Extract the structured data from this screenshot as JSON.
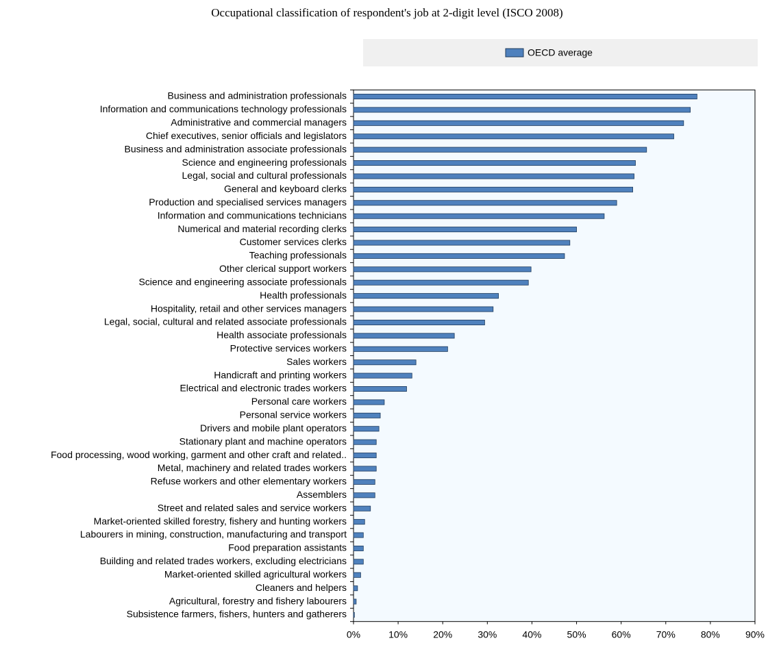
{
  "chart_data": {
    "type": "bar",
    "orientation": "horizontal",
    "title": "Occupational classification of respondent's job at 2-digit level (ISCO 2008)",
    "categories": [
      "Business and administration professionals",
      "Information and communications technology professionals",
      "Administrative and commercial managers",
      "Chief executives, senior officials and legislators",
      "Business and administration associate professionals",
      "Science and engineering professionals",
      "Legal, social and cultural professionals",
      "General and keyboard clerks",
      "Production and specialised services managers",
      "Information and communications technicians",
      "Numerical and material recording clerks",
      "Customer services clerks",
      "Teaching professionals",
      "Other clerical support workers",
      "Science and engineering associate professionals",
      "Health professionals",
      "Hospitality, retail and other services managers",
      "Legal, social, cultural and related associate professionals",
      "Health associate professionals",
      "Protective services workers",
      "Sales workers",
      "Handicraft and printing workers",
      "Electrical and electronic trades workers",
      "Personal care workers",
      "Personal service workers",
      "Drivers and mobile plant operators",
      "Stationary plant and machine operators",
      "Food processing, wood working, garment and other craft and related..",
      "Metal, machinery and related trades workers",
      "Refuse workers and other elementary workers",
      "Assemblers",
      "Street and related sales and service workers",
      "Market-oriented skilled forestry, fishery and hunting workers",
      "Labourers in mining, construction, manufacturing and transport",
      "Food preparation assistants",
      "Building and related trades workers, excluding electricians",
      "Market-oriented skilled agricultural workers",
      "Cleaners and helpers",
      "Agricultural, forestry and fishery labourers",
      "Subsistence farmers, fishers, hunters and gatherers"
    ],
    "series": [
      {
        "name": "OECD average",
        "color": "#4f81bd",
        "values": [
          77,
          75.5,
          74,
          71.8,
          65.7,
          63.2,
          62.9,
          62.6,
          59,
          56.2,
          50,
          48.5,
          47.3,
          39.8,
          39.2,
          32.5,
          31.3,
          29.4,
          22.6,
          21.1,
          14,
          13.1,
          11.9,
          6.9,
          6,
          5.7,
          5.1,
          5.1,
          5.1,
          4.8,
          4.8,
          3.8,
          2.5,
          2.2,
          2.2,
          2.2,
          1.6,
          0.9,
          0.6,
          0.2
        ]
      }
    ],
    "xlim": [
      0,
      90
    ],
    "xticks": [
      {
        "value": 0,
        "label": "0%"
      },
      {
        "value": 10,
        "label": "10%"
      },
      {
        "value": 20,
        "label": "20%"
      },
      {
        "value": 30,
        "label": "30%"
      },
      {
        "value": 40,
        "label": "40%"
      },
      {
        "value": 50,
        "label": "50%"
      },
      {
        "value": 60,
        "label": "60%"
      },
      {
        "value": 70,
        "label": "70%"
      },
      {
        "value": 80,
        "label": "80%"
      },
      {
        "value": 90,
        "label": "90%"
      }
    ],
    "legend": "top"
  }
}
